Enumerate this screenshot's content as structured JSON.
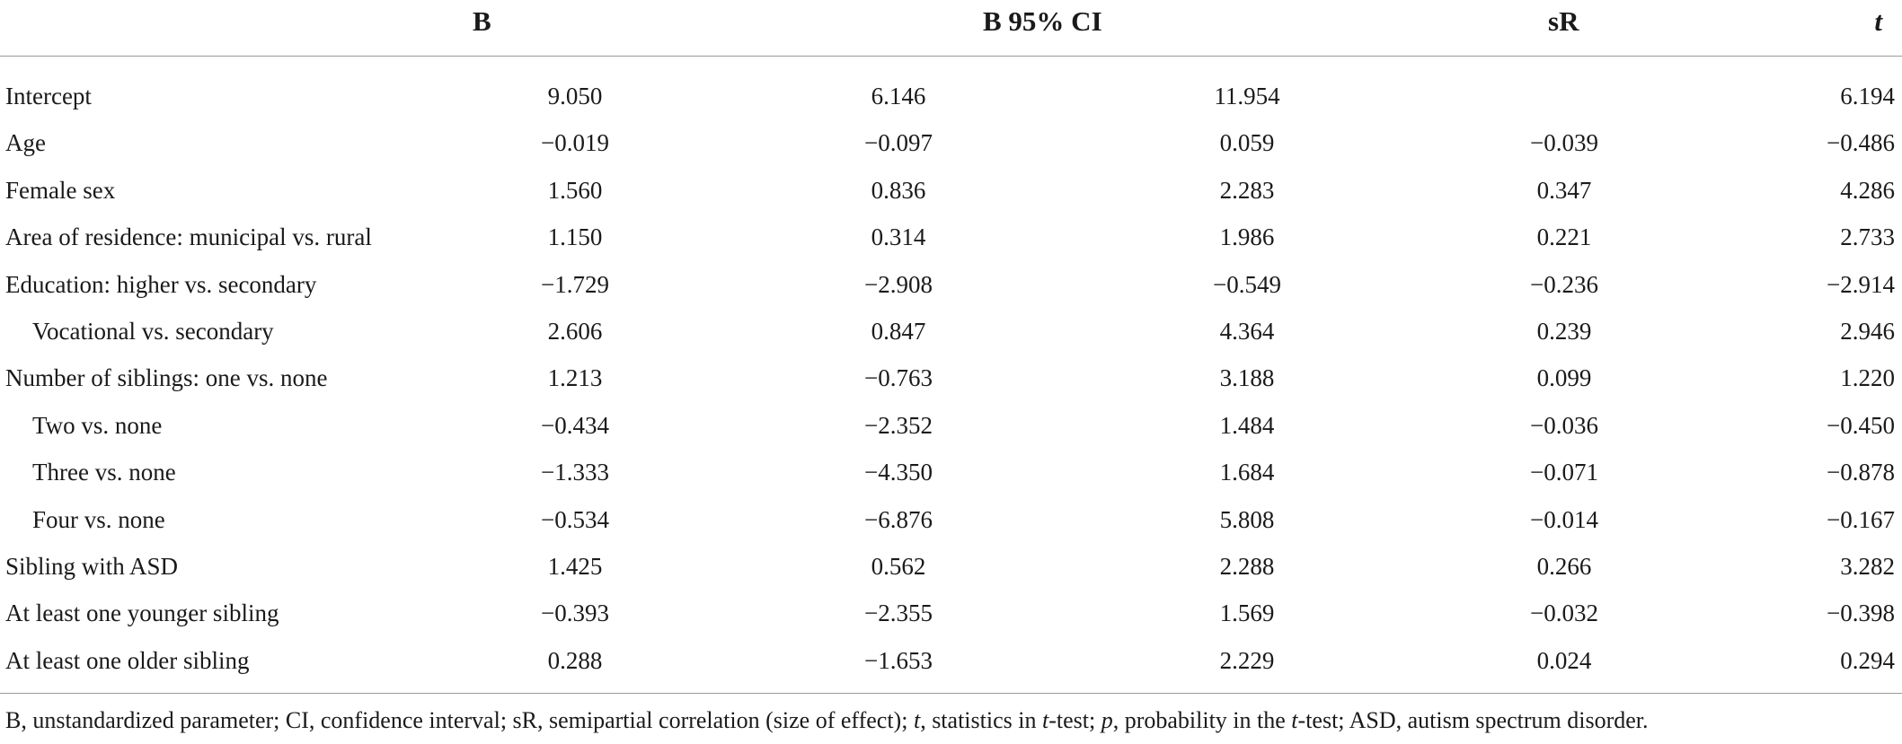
{
  "header": {
    "b": "B",
    "ci": "B 95% CI",
    "sr": "sR",
    "t": "t"
  },
  "rows": [
    {
      "label": "Intercept",
      "indent": false,
      "b": "9.050",
      "lo": "6.146",
      "hi": "11.954",
      "sr": "",
      "t": "6.194"
    },
    {
      "label": "Age",
      "indent": false,
      "b": "−0.019",
      "lo": "−0.097",
      "hi": "0.059",
      "sr": "−0.039",
      "t": "−0.486"
    },
    {
      "label": "Female sex",
      "indent": false,
      "b": "1.560",
      "lo": "0.836",
      "hi": "2.283",
      "sr": "0.347",
      "t": "4.286"
    },
    {
      "label": "Area of residence: municipal vs. rural",
      "indent": false,
      "b": "1.150",
      "lo": "0.314",
      "hi": "1.986",
      "sr": "0.221",
      "t": "2.733"
    },
    {
      "label": "Education: higher vs. secondary",
      "indent": false,
      "b": "−1.729",
      "lo": "−2.908",
      "hi": "−0.549",
      "sr": "−0.236",
      "t": "−2.914"
    },
    {
      "label": "Vocational vs. secondary",
      "indent": true,
      "b": "2.606",
      "lo": "0.847",
      "hi": "4.364",
      "sr": "0.239",
      "t": "2.946"
    },
    {
      "label": "Number of siblings: one vs. none",
      "indent": false,
      "b": "1.213",
      "lo": "−0.763",
      "hi": "3.188",
      "sr": "0.099",
      "t": "1.220"
    },
    {
      "label": "Two vs. none",
      "indent": true,
      "b": "−0.434",
      "lo": "−2.352",
      "hi": "1.484",
      "sr": "−0.036",
      "t": "−0.450"
    },
    {
      "label": "Three vs. none",
      "indent": true,
      "b": "−1.333",
      "lo": "−4.350",
      "hi": "1.684",
      "sr": "−0.071",
      "t": "−0.878"
    },
    {
      "label": "Four vs. none",
      "indent": true,
      "b": "−0.534",
      "lo": "−6.876",
      "hi": "5.808",
      "sr": "−0.014",
      "t": "−0.167"
    },
    {
      "label": "Sibling with ASD",
      "indent": false,
      "b": "1.425",
      "lo": "0.562",
      "hi": "2.288",
      "sr": "0.266",
      "t": "3.282"
    },
    {
      "label": "At least one younger sibling",
      "indent": false,
      "b": "−0.393",
      "lo": "−2.355",
      "hi": "1.569",
      "sr": "−0.032",
      "t": "−0.398"
    },
    {
      "label": "At least one older sibling",
      "indent": false,
      "b": "0.288",
      "lo": "−1.653",
      "hi": "2.229",
      "sr": "0.024",
      "t": "0.294"
    }
  ],
  "footnote": {
    "part1": "B, unstandardized parameter; CI, confidence interval; sR, semipartial correlation (size of effect); ",
    "t1": "t",
    "part2": ", statistics in ",
    "t2": "t",
    "part3": "-test; ",
    "p": "p",
    "part4": ", probability in the ",
    "t3": "t",
    "part5": "-test; ASD, autism spectrum disorder."
  }
}
